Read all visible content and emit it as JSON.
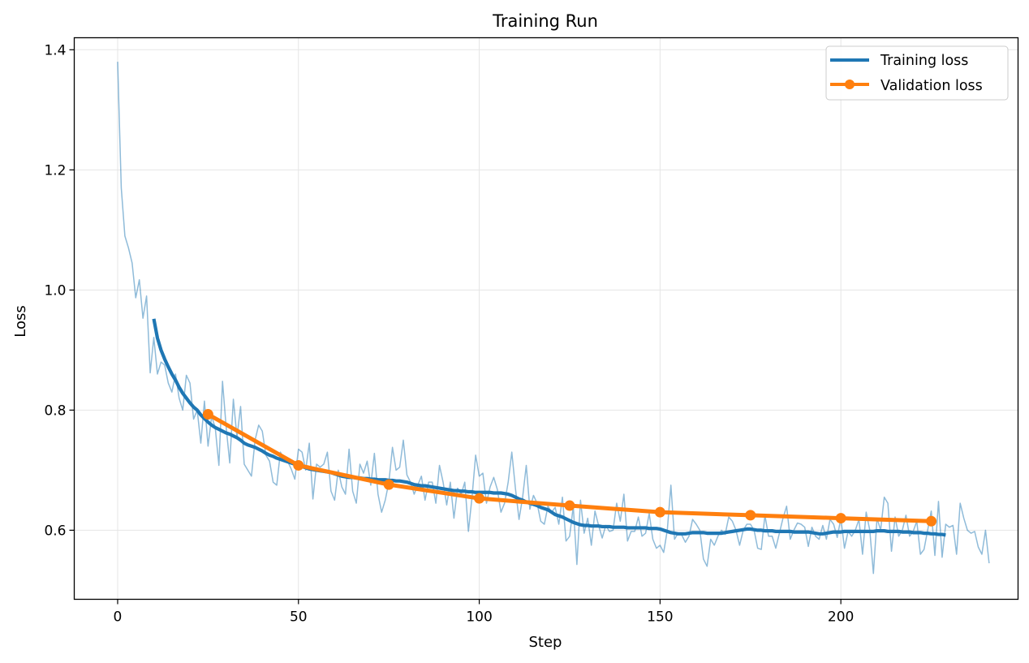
{
  "chart_data": {
    "type": "line",
    "title": "Training Run",
    "xlabel": "Step",
    "ylabel": "Loss",
    "xlim": [
      -12,
      249
    ],
    "ylim": [
      0.485,
      1.42
    ],
    "x_ticks": [
      0,
      50,
      100,
      150,
      200
    ],
    "y_ticks": [
      0.6,
      0.8,
      1.0,
      1.2,
      1.4
    ],
    "y_tick_labels": [
      "0.6",
      "0.8",
      "1.0",
      "1.2",
      "1.4"
    ],
    "grid": true,
    "legend_position": "top-right",
    "colors": {
      "train": "#1f77b4",
      "val": "#ff7f0e",
      "grid": "#e5e5e5"
    },
    "series": [
      {
        "name": "Training loss (raw)",
        "legend": false,
        "x_start": 0,
        "x_step": 1,
        "values": [
          1.38,
          1.17,
          1.09,
          1.07,
          1.045,
          0.987,
          1.017,
          0.953,
          0.99,
          0.862,
          0.921,
          0.86,
          0.88,
          0.875,
          0.845,
          0.83,
          0.86,
          0.82,
          0.8,
          0.858,
          0.845,
          0.785,
          0.8,
          0.745,
          0.815,
          0.74,
          0.79,
          0.77,
          0.708,
          0.848,
          0.772,
          0.712,
          0.818,
          0.755,
          0.806,
          0.71,
          0.7,
          0.69,
          0.75,
          0.775,
          0.765,
          0.725,
          0.715,
          0.68,
          0.675,
          0.73,
          0.72,
          0.715,
          0.702,
          0.685,
          0.735,
          0.73,
          0.7,
          0.745,
          0.652,
          0.71,
          0.705,
          0.71,
          0.73,
          0.665,
          0.65,
          0.7,
          0.672,
          0.66,
          0.735,
          0.665,
          0.645,
          0.71,
          0.695,
          0.715,
          0.675,
          0.728,
          0.66,
          0.63,
          0.65,
          0.68,
          0.738,
          0.7,
          0.705,
          0.75,
          0.692,
          0.68,
          0.66,
          0.675,
          0.69,
          0.65,
          0.68,
          0.68,
          0.645,
          0.708,
          0.68,
          0.642,
          0.68,
          0.62,
          0.67,
          0.66,
          0.68,
          0.598,
          0.655,
          0.725,
          0.69,
          0.695,
          0.645,
          0.672,
          0.688,
          0.668,
          0.63,
          0.645,
          0.68,
          0.73,
          0.67,
          0.618,
          0.655,
          0.708,
          0.635,
          0.658,
          0.645,
          0.615,
          0.61,
          0.64,
          0.63,
          0.638,
          0.61,
          0.655,
          0.582,
          0.59,
          0.64,
          0.543,
          0.65,
          0.595,
          0.62,
          0.575,
          0.632,
          0.608,
          0.587,
          0.608,
          0.598,
          0.6,
          0.645,
          0.615,
          0.66,
          0.582,
          0.598,
          0.598,
          0.622,
          0.59,
          0.595,
          0.628,
          0.585,
          0.57,
          0.575,
          0.563,
          0.6,
          0.675,
          0.585,
          0.595,
          0.592,
          0.58,
          0.59,
          0.618,
          0.61,
          0.6,
          0.552,
          0.54,
          0.585,
          0.575,
          0.59,
          0.6,
          0.593,
          0.622,
          0.615,
          0.6,
          0.575,
          0.6,
          0.61,
          0.61,
          0.6,
          0.57,
          0.568,
          0.625,
          0.59,
          0.59,
          0.57,
          0.595,
          0.62,
          0.64,
          0.585,
          0.6,
          0.612,
          0.61,
          0.605,
          0.573,
          0.605,
          0.59,
          0.585,
          0.608,
          0.585,
          0.618,
          0.61,
          0.588,
          0.62,
          0.57,
          0.598,
          0.59,
          0.6,
          0.618,
          0.56,
          0.63,
          0.6,
          0.528,
          0.62,
          0.6,
          0.655,
          0.645,
          0.565,
          0.622,
          0.59,
          0.6,
          0.625,
          0.59,
          0.598,
          0.615,
          0.56,
          0.568,
          0.6,
          0.632,
          0.558,
          0.648,
          0.555,
          0.61,
          0.605,
          0.608,
          0.56,
          0.645,
          0.62,
          0.6,
          0.595,
          0.598,
          0.572,
          0.56,
          0.6,
          0.545
        ]
      },
      {
        "name": "Training loss",
        "legend": true,
        "x_start": 10,
        "x_step": 1,
        "values": [
          0.952,
          0.92,
          0.9,
          0.885,
          0.872,
          0.86,
          0.85,
          0.838,
          0.828,
          0.82,
          0.812,
          0.805,
          0.8,
          0.792,
          0.786,
          0.78,
          0.775,
          0.771,
          0.768,
          0.765,
          0.762,
          0.76,
          0.757,
          0.754,
          0.75,
          0.745,
          0.742,
          0.74,
          0.738,
          0.735,
          0.732,
          0.728,
          0.725,
          0.723,
          0.72,
          0.718,
          0.716,
          0.714,
          0.712,
          0.71,
          0.708,
          0.706,
          0.704,
          0.702,
          0.701,
          0.7,
          0.699,
          0.698,
          0.697,
          0.696,
          0.694,
          0.692,
          0.69,
          0.689,
          0.688,
          0.688,
          0.687,
          0.687,
          0.686,
          0.686,
          0.685,
          0.685,
          0.684,
          0.684,
          0.684,
          0.683,
          0.683,
          0.682,
          0.682,
          0.681,
          0.68,
          0.678,
          0.676,
          0.675,
          0.674,
          0.674,
          0.673,
          0.672,
          0.671,
          0.67,
          0.669,
          0.668,
          0.667,
          0.666,
          0.666,
          0.665,
          0.665,
          0.664,
          0.664,
          0.663,
          0.663,
          0.663,
          0.663,
          0.663,
          0.662,
          0.662,
          0.662,
          0.661,
          0.66,
          0.658,
          0.655,
          0.652,
          0.65,
          0.647,
          0.645,
          0.643,
          0.641,
          0.638,
          0.636,
          0.634,
          0.63,
          0.626,
          0.624,
          0.622,
          0.619,
          0.616,
          0.613,
          0.611,
          0.609,
          0.608,
          0.608,
          0.607,
          0.607,
          0.607,
          0.606,
          0.606,
          0.606,
          0.605,
          0.605,
          0.605,
          0.605,
          0.604,
          0.604,
          0.604,
          0.604,
          0.604,
          0.604,
          0.603,
          0.603,
          0.603,
          0.602,
          0.6,
          0.598,
          0.596,
          0.595,
          0.594,
          0.594,
          0.594,
          0.595,
          0.596,
          0.596,
          0.596,
          0.596,
          0.595,
          0.595,
          0.595,
          0.595,
          0.595,
          0.596,
          0.597,
          0.598,
          0.599,
          0.6,
          0.601,
          0.602,
          0.602,
          0.601,
          0.6,
          0.6,
          0.599,
          0.599,
          0.599,
          0.598,
          0.598,
          0.598,
          0.598,
          0.598,
          0.597,
          0.597,
          0.597,
          0.597,
          0.597,
          0.596,
          0.595,
          0.594,
          0.594,
          0.595,
          0.596,
          0.597,
          0.597,
          0.597,
          0.598,
          0.598,
          0.598,
          0.598,
          0.598,
          0.598,
          0.598,
          0.598,
          0.598,
          0.599,
          0.599,
          0.599,
          0.598,
          0.598,
          0.598,
          0.598,
          0.597,
          0.597,
          0.597,
          0.596,
          0.596,
          0.596,
          0.595,
          0.595,
          0.594,
          0.594,
          0.593,
          0.593,
          0.592
        ]
      },
      {
        "name": "Validation loss",
        "legend": true,
        "markers": true,
        "x": [
          25,
          50,
          75,
          100,
          125,
          150,
          175,
          200,
          225
        ],
        "values": [
          0.793,
          0.708,
          0.676,
          0.653,
          0.641,
          0.63,
          0.625,
          0.62,
          0.615
        ]
      }
    ]
  }
}
